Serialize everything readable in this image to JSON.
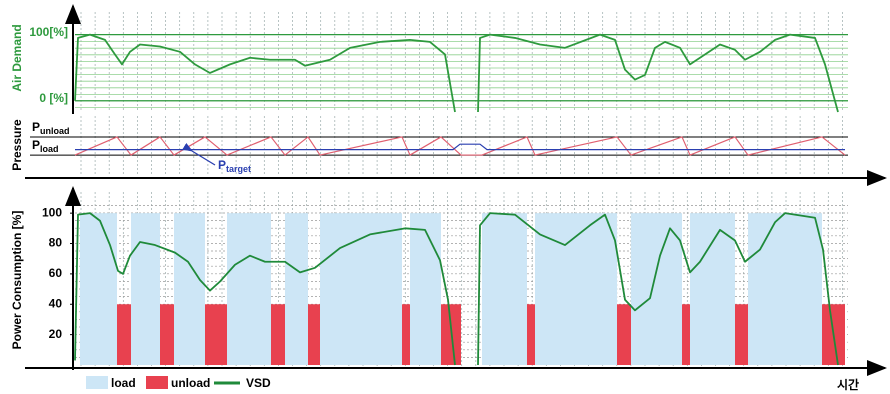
{
  "chart_data": [
    {
      "type": "line",
      "ylabel": "Air Demand",
      "xlim": [
        0,
        770
      ],
      "ylim": [
        -17,
        110
      ],
      "yticks": [
        {
          "value": 100,
          "label": "100[%]"
        },
        {
          "value": 0,
          "label": "0 [%]"
        }
      ],
      "series": [
        {
          "color": "#2e9a3e",
          "x": [
            0,
            3,
            15,
            30,
            40,
            47,
            55,
            65,
            85,
            105,
            120,
            135,
            155,
            175,
            195,
            220,
            230,
            255,
            275,
            305,
            335,
            355,
            370,
            380,
            null,
            403,
            405,
            415,
            440,
            465,
            490,
            525,
            540,
            550,
            560,
            570,
            580,
            590,
            605,
            615,
            625,
            645,
            660,
            670,
            685,
            700,
            715,
            740,
            750,
            763
          ],
          "values": [
            0,
            95,
            100,
            92,
            70,
            55,
            74,
            85,
            82,
            74,
            55,
            42,
            55,
            65,
            62,
            62,
            53,
            62,
            80,
            89,
            92,
            89,
            70,
            -17,
            null,
            -17,
            95,
            100,
            95,
            85,
            80,
            100,
            92,
            47,
            32,
            39,
            80,
            89,
            80,
            55,
            65,
            85,
            77,
            62,
            74,
            92,
            100,
            95,
            55,
            -17
          ]
        }
      ]
    },
    {
      "type": "line",
      "ylabel": "Pressure",
      "xlim": [
        0,
        770
      ],
      "ylim": [
        -1.1,
        2.1
      ],
      "yticks": [
        {
          "value": 1,
          "label": "P",
          "sub": "unload"
        },
        {
          "value": 0,
          "label": "P",
          "sub": "load"
        }
      ],
      "annotation": {
        "label": "P",
        "sub": "target"
      },
      "series": [
        {
          "color": "#e06070",
          "x": [
            0,
            42,
            56,
            85,
            99,
            130,
            152,
            196,
            210,
            233,
            245,
            327,
            335,
            366,
            386,
            407,
            452,
            460,
            542,
            556,
            607,
            615,
            660,
            673,
            747,
            770
          ],
          "values": [
            0,
            1,
            0,
            1,
            0,
            1,
            0,
            1,
            0,
            1,
            0,
            1,
            0,
            1,
            0,
            0,
            1,
            0,
            1,
            0,
            1,
            0,
            1,
            0,
            1,
            0
          ]
        },
        {
          "color": "#2a3fb0",
          "x": [
            0,
            378,
            385,
            405,
            412,
            770
          ],
          "values": [
            0.3,
            0.3,
            0.6,
            0.6,
            0.3,
            0.3
          ]
        }
      ]
    },
    {
      "type": "bar",
      "ylabel": "Power Consumption [%]",
      "xlabel": "시간",
      "xlim": [
        0,
        770
      ],
      "ylim": [
        0,
        108
      ],
      "yticks": [
        20,
        40,
        60,
        80,
        100
      ],
      "series": [
        {
          "name": "load",
          "type": "bar",
          "color": "#cde6f6",
          "x0": [
            5,
            56,
            99,
            152,
            210,
            245,
            335,
            407,
            460,
            556,
            615,
            673
          ],
          "x1": [
            42,
            85,
            130,
            196,
            233,
            327,
            366,
            452,
            542,
            607,
            660,
            747
          ],
          "values": [
            100,
            100,
            100,
            100,
            100,
            100,
            100,
            100,
            100,
            100,
            100,
            100
          ]
        },
        {
          "name": "unload",
          "type": "bar",
          "color": "#e8414f",
          "x0": [
            42,
            85,
            130,
            196,
            233,
            327,
            366,
            452,
            542,
            607,
            660,
            747
          ],
          "x1": [
            56,
            99,
            152,
            210,
            245,
            335,
            386,
            460,
            556,
            615,
            673,
            770
          ],
          "values": [
            40,
            40,
            40,
            40,
            40,
            40,
            40,
            40,
            40,
            40,
            40,
            40
          ]
        },
        {
          "name": "VSD",
          "type": "line",
          "color": "#1f8a3a",
          "x": [
            0,
            3,
            15,
            25,
            35,
            43,
            48,
            55,
            65,
            80,
            100,
            113,
            125,
            135,
            145,
            160,
            175,
            190,
            210,
            225,
            240,
            265,
            295,
            330,
            350,
            365,
            373,
            380,
            null,
            403,
            405,
            415,
            440,
            465,
            490,
            515,
            530,
            540,
            550,
            560,
            575,
            585,
            595,
            605,
            615,
            625,
            645,
            660,
            670,
            685,
            700,
            710,
            740,
            748,
            755,
            763
          ],
          "values": [
            3,
            99,
            100,
            95,
            79,
            62,
            60,
            72,
            81,
            79,
            74,
            68,
            56,
            49,
            55,
            66,
            72,
            68,
            68,
            61,
            64,
            77,
            86,
            90,
            89,
            69,
            43,
            0,
            null,
            0,
            92,
            100,
            99,
            86,
            79,
            92,
            99,
            82,
            43,
            36,
            44,
            72,
            90,
            82,
            61,
            68,
            89,
            82,
            68,
            76,
            94,
            100,
            97,
            76,
            36,
            0
          ]
        }
      ]
    }
  ]
}
